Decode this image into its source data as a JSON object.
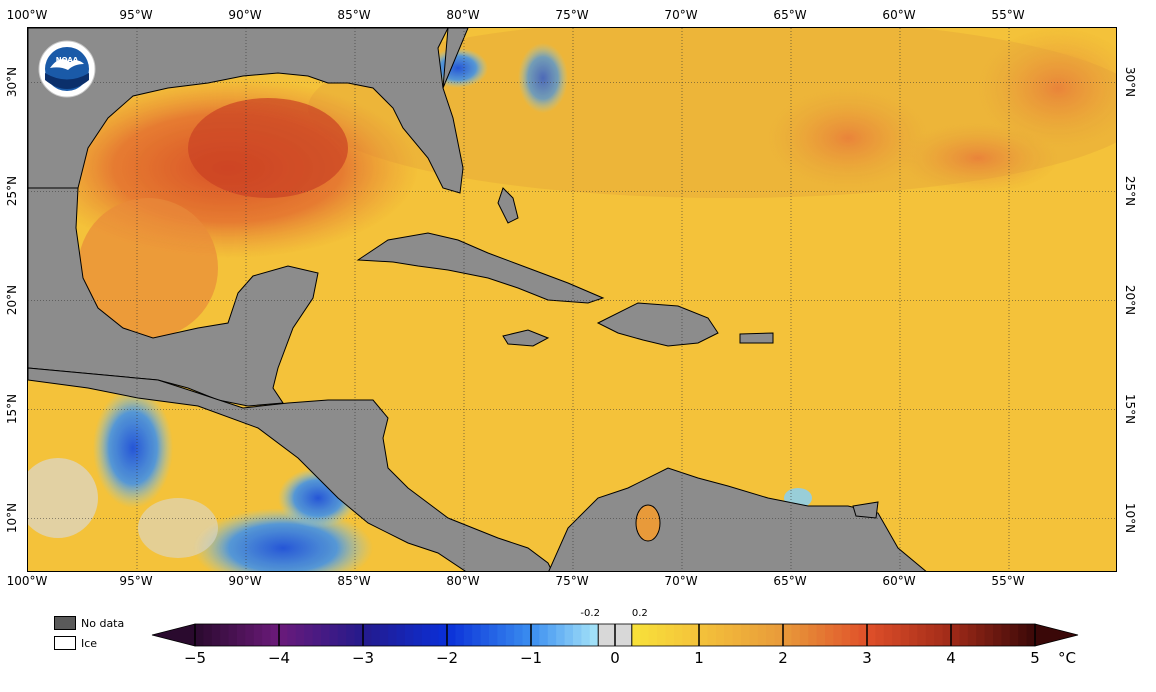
{
  "logo": {
    "text": "NOAA",
    "colors": {
      "ring": "#ffffff",
      "sky": "#1a5aa8",
      "sea": "#0b2f6b",
      "bird": "#ffffff"
    }
  },
  "map": {
    "lon_range": [
      -100,
      -50
    ],
    "lat_range": [
      7.5,
      32.5
    ],
    "grid_lons": [
      -95,
      -90,
      -85,
      -80,
      -75,
      -70,
      -65,
      -60,
      -55
    ],
    "grid_lats": [
      10,
      15,
      20,
      25,
      30
    ],
    "colors": {
      "land": "#8c8c8c",
      "coast": "#000000",
      "ocean_base": "#f4c23a",
      "nodata": "#8c8c8c",
      "ice": "#ffffff"
    }
  },
  "axes": {
    "top_lon_labels": [
      "100°W",
      "95°W",
      "90°W",
      "85°W",
      "80°W",
      "75°W",
      "70°W",
      "65°W",
      "60°W",
      "55°W"
    ],
    "bottom_lon_labels": [
      "100°W",
      "95°W",
      "90°W",
      "85°W",
      "80°W",
      "75°W",
      "70°W",
      "65°W",
      "60°W",
      "55°W"
    ],
    "lat_labels": [
      "30°N",
      "25°N",
      "20°N",
      "15°N",
      "10°N"
    ]
  },
  "legend": {
    "nodata_label": "No data",
    "ice_label": "Ice",
    "nodata_color": "#5a5a5a",
    "ice_color": "#ffffff"
  },
  "colorbar": {
    "ticks": [
      "−5",
      "−4",
      "−3",
      "−2",
      "−1",
      "0",
      "1",
      "2",
      "3",
      "4",
      "5"
    ],
    "tick_values": [
      -5,
      -4,
      -3,
      -2,
      -1,
      0,
      1,
      2,
      3,
      4,
      5
    ],
    "small_labels": [
      "-0.2",
      "0.2"
    ],
    "small_values": [
      -0.2,
      0.2
    ],
    "unit": "°C",
    "stops": [
      {
        "v": -5,
        "c": "#2a0a2e"
      },
      {
        "v": -4,
        "c": "#6b1a7a"
      },
      {
        "v": -3,
        "c": "#241a8c"
      },
      {
        "v": -2,
        "c": "#0a2fd8"
      },
      {
        "v": -1,
        "c": "#3a8ef0"
      },
      {
        "v": -0.2,
        "c": "#a8e6f8"
      },
      {
        "v": 0,
        "c": "#d8d8d8"
      },
      {
        "v": 0.2,
        "c": "#f8e23a"
      },
      {
        "v": 1,
        "c": "#f4c23a"
      },
      {
        "v": 2,
        "c": "#e89a3a"
      },
      {
        "v": 3,
        "c": "#e0502a"
      },
      {
        "v": 4,
        "c": "#a02a18"
      },
      {
        "v": 5,
        "c": "#3a0808"
      }
    ]
  }
}
